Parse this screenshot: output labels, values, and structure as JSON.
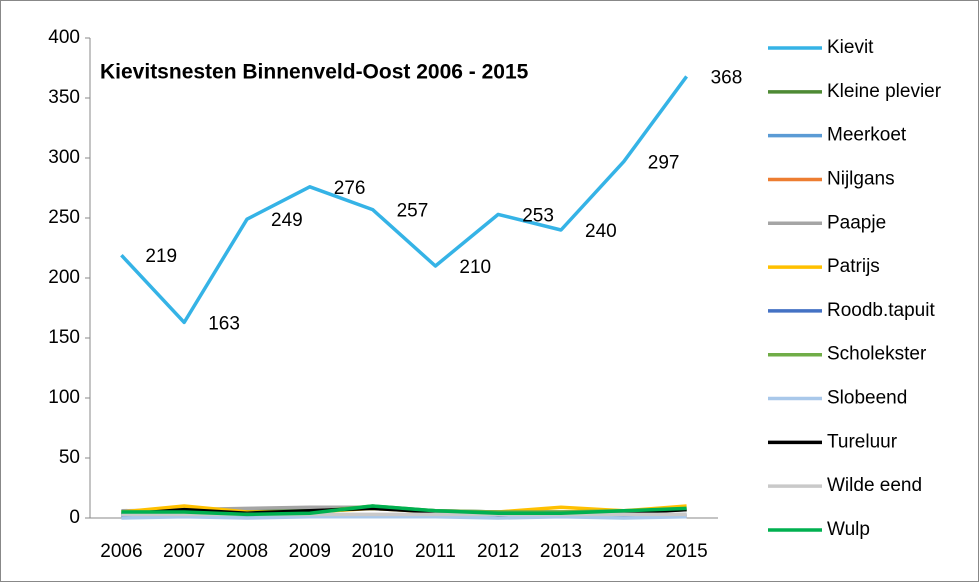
{
  "chart_data": {
    "type": "line",
    "title": "Kievitsnesten Binnenveld-Oost 2006 - 2015",
    "categories": [
      "2006",
      "2007",
      "2008",
      "2009",
      "2010",
      "2011",
      "2012",
      "2013",
      "2014",
      "2015"
    ],
    "ylim": [
      0,
      400
    ],
    "yticks": [
      0,
      50,
      100,
      150,
      200,
      250,
      300,
      350,
      400
    ],
    "grid": false,
    "legend": "right",
    "series": [
      {
        "name": "Kievit",
        "color": "#35b3e6",
        "values": [
          219,
          163,
          249,
          276,
          257,
          210,
          253,
          240,
          297,
          368
        ],
        "data_labels": true
      },
      {
        "name": "Kleine plevier",
        "color": "#4e8a34",
        "values": [
          5,
          5,
          6,
          7,
          8,
          6,
          5,
          5,
          5,
          7
        ]
      },
      {
        "name": "Meerkoet",
        "color": "#5b9bd5",
        "values": [
          2,
          2,
          2,
          3,
          2,
          2,
          2,
          2,
          2,
          3
        ]
      },
      {
        "name": "Nijlgans",
        "color": "#ed7d31",
        "values": [
          1,
          1,
          1,
          1,
          1,
          1,
          1,
          1,
          1,
          1
        ]
      },
      {
        "name": "Paapje",
        "color": "#a5a5a5",
        "values": [
          6,
          7,
          8,
          9,
          9,
          6,
          5,
          5,
          6,
          7
        ]
      },
      {
        "name": "Patrijs",
        "color": "#ffc000",
        "values": [
          5,
          10,
          5,
          5,
          8,
          5,
          5,
          9,
          6,
          10
        ]
      },
      {
        "name": "Roodb.tapuit",
        "color": "#4472c4",
        "values": [
          2,
          2,
          2,
          2,
          2,
          2,
          2,
          2,
          2,
          2
        ]
      },
      {
        "name": "Scholekster",
        "color": "#70ad47",
        "values": [
          5,
          5,
          4,
          5,
          10,
          6,
          5,
          5,
          6,
          7
        ]
      },
      {
        "name": "Slobeend",
        "color": "#a9c8ea",
        "values": [
          0,
          1,
          0,
          1,
          1,
          1,
          0,
          1,
          0,
          1
        ]
      },
      {
        "name": "Tureluur",
        "color": "#000000",
        "values": [
          3,
          7,
          4,
          6,
          8,
          5,
          3,
          4,
          4,
          7
        ]
      },
      {
        "name": "Wilde eend",
        "color": "#c9c9c9",
        "values": [
          3,
          3,
          3,
          3,
          3,
          3,
          3,
          3,
          3,
          3
        ]
      },
      {
        "name": "Wulp",
        "color": "#00b050",
        "values": [
          5,
          5,
          3,
          4,
          10,
          6,
          4,
          4,
          6,
          8
        ]
      }
    ]
  }
}
